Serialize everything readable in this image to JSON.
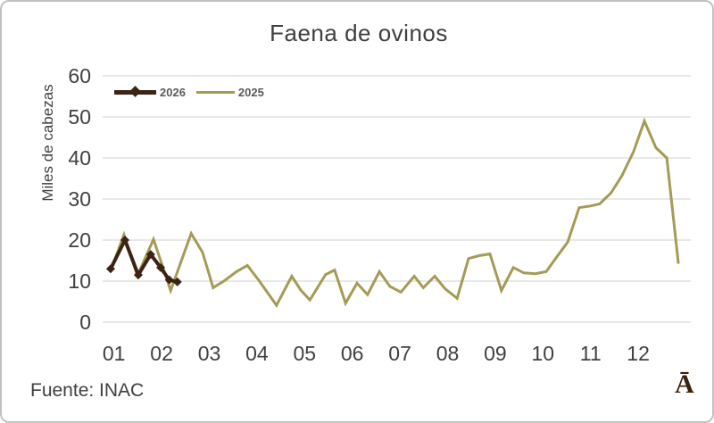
{
  "title": "Faena de ovinos",
  "source_label": "Fuente: INAC",
  "watermark": "Ā",
  "colors": {
    "title_text": "#3f3f3f",
    "axis_text": "#404040",
    "legend_text": "#595959",
    "grid": "#d9d9d9",
    "series_2026": "#3c2314",
    "series_2025": "#a49b55",
    "watermark": "#3a220e",
    "background": "#ffffff",
    "panel_border": "#c2c2c2"
  },
  "chart_data": {
    "type": "line",
    "title": "Faena de ovinos",
    "xlabel": "",
    "ylabel": "Miles de cabezas",
    "x_tick_labels": [
      "01",
      "02",
      "03",
      "04",
      "05",
      "06",
      "07",
      "08",
      "09",
      "10",
      "11",
      "12"
    ],
    "y_ticks": [
      0,
      10,
      20,
      30,
      40,
      50,
      60
    ],
    "ylim": [
      0,
      60
    ],
    "xlim_months": [
      0.8,
      13
    ],
    "grid": true,
    "legend_position": "top-left-inside",
    "series": [
      {
        "name": "2026",
        "color": "#3c2314",
        "marker": "diamond",
        "line_width": 4,
        "points": [
          [
            0.93,
            13
          ],
          [
            1.23,
            20
          ],
          [
            1.51,
            11.5
          ],
          [
            1.77,
            16.5
          ],
          [
            1.98,
            13.3
          ],
          [
            2.16,
            10.3
          ],
          [
            2.33,
            9.8
          ]
        ]
      },
      {
        "name": "2025",
        "color": "#a49b55",
        "marker": "none",
        "line_width": 3,
        "points": [
          [
            0.93,
            12.5
          ],
          [
            1.21,
            21.3
          ],
          [
            1.49,
            11.3
          ],
          [
            1.83,
            20.2
          ],
          [
            2.19,
            7.7
          ],
          [
            2.62,
            21.6
          ],
          [
            2.86,
            17
          ],
          [
            3.08,
            8.4
          ],
          [
            3.33,
            10.2
          ],
          [
            3.57,
            12.3
          ],
          [
            3.8,
            13.8
          ],
          [
            4.04,
            10.2
          ],
          [
            4.41,
            4.1
          ],
          [
            4.73,
            11.2
          ],
          [
            4.92,
            7.8
          ],
          [
            5.11,
            5.4
          ],
          [
            5.44,
            11.6
          ],
          [
            5.63,
            12.7
          ],
          [
            5.86,
            4.6
          ],
          [
            6.1,
            9.5
          ],
          [
            6.32,
            6.7
          ],
          [
            6.57,
            12.3
          ],
          [
            6.79,
            8.7
          ],
          [
            7.02,
            7.3
          ],
          [
            7.3,
            11.2
          ],
          [
            7.49,
            8.4
          ],
          [
            7.73,
            11.2
          ],
          [
            7.95,
            8.1
          ],
          [
            8.2,
            5.8
          ],
          [
            8.44,
            15.5
          ],
          [
            8.66,
            16.2
          ],
          [
            8.89,
            16.6
          ],
          [
            9.13,
            7.7
          ],
          [
            9.38,
            13.3
          ],
          [
            9.6,
            12
          ],
          [
            9.84,
            11.8
          ],
          [
            10.07,
            12.3
          ],
          [
            10.29,
            15.9
          ],
          [
            10.52,
            19.5
          ],
          [
            10.76,
            27.9
          ],
          [
            11,
            28.3
          ],
          [
            11.19,
            28.8
          ],
          [
            11.43,
            31.5
          ],
          [
            11.66,
            35.7
          ],
          [
            11.9,
            41.5
          ],
          [
            12.13,
            49
          ],
          [
            12.37,
            42.5
          ],
          [
            12.6,
            40
          ],
          [
            12.84,
            14.5
          ]
        ]
      }
    ]
  }
}
